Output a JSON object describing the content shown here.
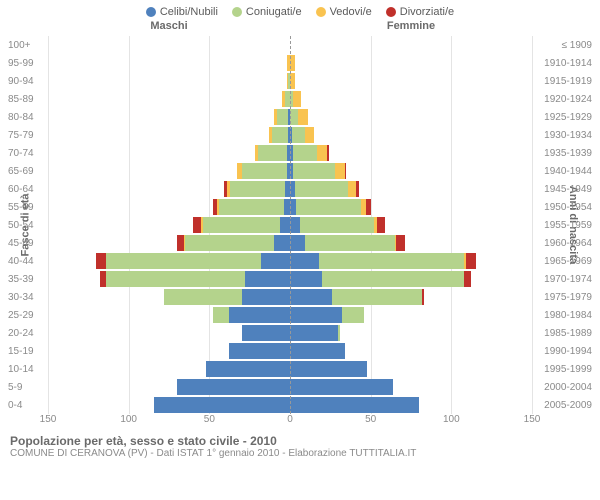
{
  "legend": [
    {
      "label": "Celibi/Nubili",
      "color": "#4f81bd"
    },
    {
      "label": "Coniugati/e",
      "color": "#b4d38c"
    },
    {
      "label": "Vedovi/e",
      "color": "#f9c350"
    },
    {
      "label": "Divorziati/e",
      "color": "#c0302b"
    }
  ],
  "header_male": "Maschi",
  "header_female": "Femmine",
  "y_left_title": "Fasce di età",
  "y_right_title": "Anni di nascita",
  "title": "Popolazione per età, sesso e stato civile - 2010",
  "subtitle": "COMUNE DI CERANOVA (PV) - Dati ISTAT 1° gennaio 2010 - Elaborazione TUTTITALIA.IT",
  "chart": {
    "xmax": 150,
    "xticks": [
      150,
      100,
      50,
      0,
      50,
      100,
      150
    ],
    "grid_color": "#e4e4e4",
    "bg_color": "#ffffff",
    "colors": {
      "single": "#4f81bd",
      "married": "#b4d38c",
      "widowed": "#f9c350",
      "divorced": "#c0302b"
    },
    "rows": [
      {
        "age": "100+",
        "birth": "≤ 1909",
        "m": [
          0,
          0,
          0,
          0
        ],
        "f": [
          0,
          0,
          0,
          0
        ]
      },
      {
        "age": "95-99",
        "birth": "1910-1914",
        "m": [
          0,
          0,
          2,
          0
        ],
        "f": [
          0,
          0,
          3,
          0
        ]
      },
      {
        "age": "90-94",
        "birth": "1915-1919",
        "m": [
          0,
          1,
          1,
          0
        ],
        "f": [
          0,
          0,
          3,
          0
        ]
      },
      {
        "age": "85-89",
        "birth": "1920-1924",
        "m": [
          0,
          3,
          2,
          0
        ],
        "f": [
          0,
          2,
          5,
          0
        ]
      },
      {
        "age": "80-84",
        "birth": "1925-1929",
        "m": [
          1,
          7,
          2,
          0
        ],
        "f": [
          0,
          5,
          6,
          0
        ]
      },
      {
        "age": "75-79",
        "birth": "1930-1934",
        "m": [
          1,
          10,
          2,
          0
        ],
        "f": [
          1,
          8,
          6,
          0
        ]
      },
      {
        "age": "70-74",
        "birth": "1935-1939",
        "m": [
          2,
          18,
          2,
          0
        ],
        "f": [
          2,
          15,
          6,
          1
        ]
      },
      {
        "age": "65-69",
        "birth": "1940-1944",
        "m": [
          2,
          28,
          3,
          0
        ],
        "f": [
          2,
          26,
          6,
          1
        ]
      },
      {
        "age": "60-64",
        "birth": "1945-1949",
        "m": [
          3,
          34,
          2,
          2
        ],
        "f": [
          3,
          33,
          5,
          2
        ]
      },
      {
        "age": "55-59",
        "birth": "1950-1954",
        "m": [
          4,
          40,
          1,
          3
        ],
        "f": [
          4,
          40,
          3,
          3
        ]
      },
      {
        "age": "50-54",
        "birth": "1955-1959",
        "m": [
          6,
          48,
          1,
          5
        ],
        "f": [
          6,
          46,
          2,
          5
        ]
      },
      {
        "age": "45-49",
        "birth": "1960-1964",
        "m": [
          10,
          55,
          1,
          4
        ],
        "f": [
          9,
          56,
          1,
          5
        ]
      },
      {
        "age": "40-44",
        "birth": "1965-1969",
        "m": [
          18,
          96,
          0,
          6
        ],
        "f": [
          18,
          90,
          1,
          6
        ]
      },
      {
        "age": "35-39",
        "birth": "1970-1974",
        "m": [
          28,
          86,
          0,
          4
        ],
        "f": [
          20,
          88,
          0,
          4
        ]
      },
      {
        "age": "30-34",
        "birth": "1975-1979",
        "m": [
          30,
          48,
          0,
          0
        ],
        "f": [
          26,
          56,
          0,
          1
        ]
      },
      {
        "age": "25-29",
        "birth": "1980-1984",
        "m": [
          38,
          10,
          0,
          0
        ],
        "f": [
          32,
          14,
          0,
          0
        ]
      },
      {
        "age": "20-24",
        "birth": "1985-1989",
        "m": [
          30,
          0,
          0,
          0
        ],
        "f": [
          30,
          1,
          0,
          0
        ]
      },
      {
        "age": "15-19",
        "birth": "1990-1994",
        "m": [
          38,
          0,
          0,
          0
        ],
        "f": [
          34,
          0,
          0,
          0
        ]
      },
      {
        "age": "10-14",
        "birth": "1995-1999",
        "m": [
          52,
          0,
          0,
          0
        ],
        "f": [
          48,
          0,
          0,
          0
        ]
      },
      {
        "age": "5-9",
        "birth": "2000-2004",
        "m": [
          70,
          0,
          0,
          0
        ],
        "f": [
          64,
          0,
          0,
          0
        ]
      },
      {
        "age": "0-4",
        "birth": "2005-2009",
        "m": [
          84,
          0,
          0,
          0
        ],
        "f": [
          80,
          0,
          0,
          0
        ]
      }
    ]
  }
}
